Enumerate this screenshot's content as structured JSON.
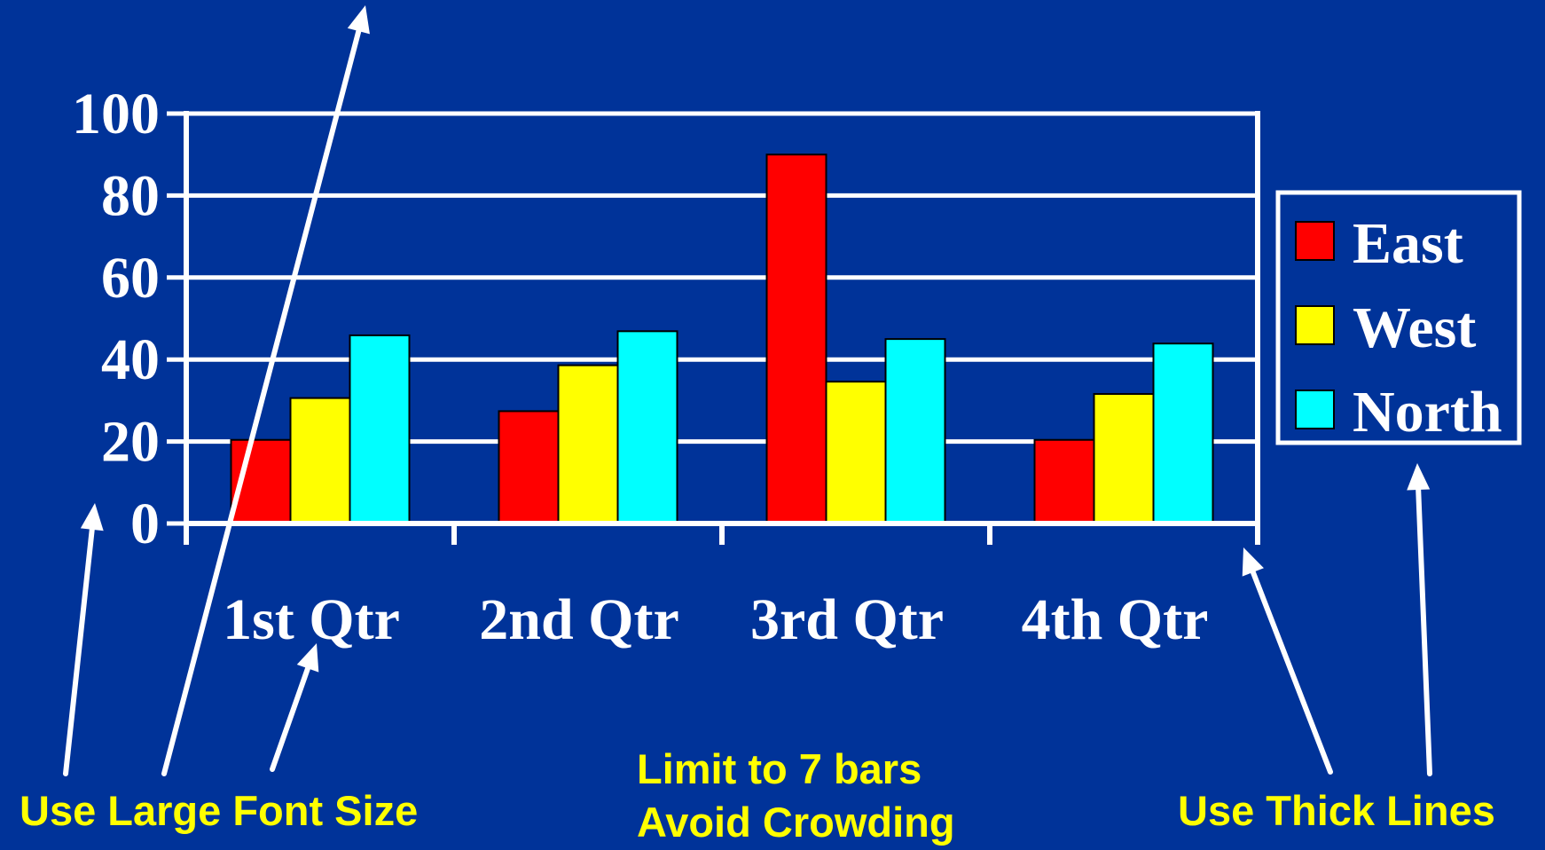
{
  "colors": {
    "background": "#003399",
    "axis": "#FFFFFF",
    "tick_text": "#FFFFFF",
    "annotation_text": "#FFFF00",
    "arrows": "#FFFFFF"
  },
  "chart_data": {
    "type": "bar",
    "title": "",
    "xlabel": "",
    "ylabel": "",
    "categories": [
      "1st Qtr",
      "2nd Qtr",
      "3rd Qtr",
      "4th Qtr"
    ],
    "series": [
      {
        "name": "East",
        "color": "#FF0000",
        "values": [
          20.4,
          27.4,
          90,
          20.4
        ]
      },
      {
        "name": "West",
        "color": "#FFFF00",
        "values": [
          30.6,
          38.6,
          34.6,
          31.6
        ]
      },
      {
        "name": "North",
        "color": "#00FFFF",
        "values": [
          45.9,
          46.9,
          45,
          43.9
        ]
      }
    ],
    "ylim": [
      0,
      100
    ],
    "yticks": [
      0,
      20,
      40,
      60,
      80,
      100
    ],
    "grid": true,
    "legend": "right"
  },
  "annotations": {
    "font_size": "Use Large Font Size",
    "limit_bars_line1": "Limit to 7 bars",
    "limit_bars_line2": "Avoid Crowding",
    "thick_lines": "Use Thick Lines"
  }
}
